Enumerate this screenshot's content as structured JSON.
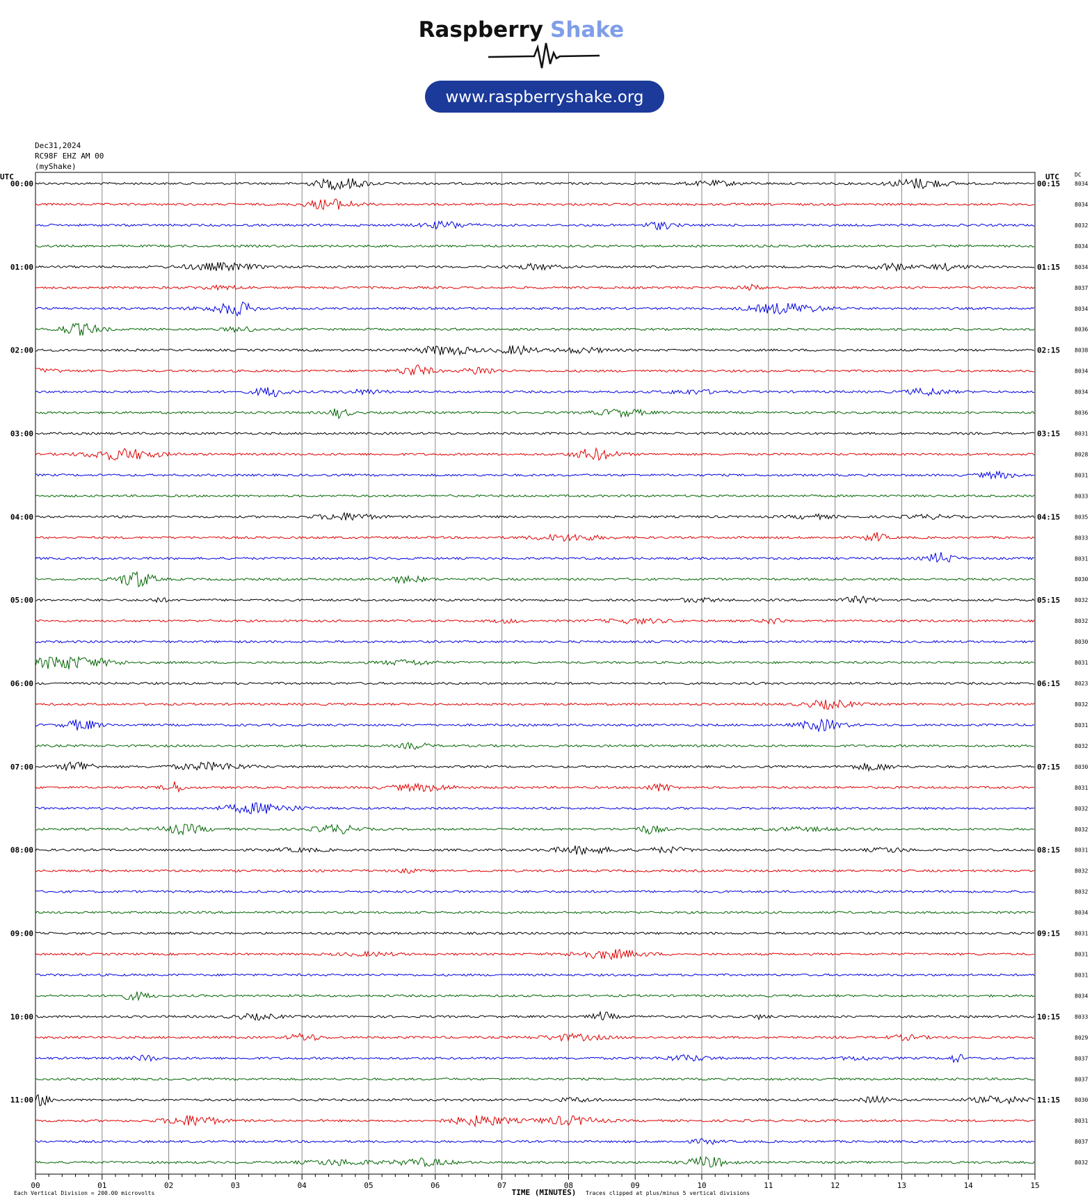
{
  "header": {
    "brand_1": "Raspberry",
    "brand_2": "Shake",
    "url": "www.raspberryshake.org"
  },
  "plot": {
    "date": "Dec31,2024",
    "station": "RC98F EHZ AM 00",
    "source": "(myShake)",
    "left_axis_label": "UTC",
    "right_axis_label": "UTC",
    "dc_label": "DC",
    "left_times": [
      "00:00",
      "01:00",
      "02:00",
      "03:00",
      "04:00",
      "05:00",
      "06:00",
      "07:00",
      "08:00",
      "09:00",
      "10:00",
      "11:00"
    ],
    "right_times": [
      "00:15",
      "01:15",
      "02:15",
      "03:15",
      "04:15",
      "05:15",
      "06:15",
      "07:15",
      "08:15",
      "09:15",
      "10:15",
      "11:15"
    ],
    "dc_values": [
      "8034",
      "8034",
      "8032",
      "8034",
      "8034",
      "8037",
      "8034",
      "8036",
      "8038",
      "8034",
      "8034",
      "8036",
      "8031",
      "8028",
      "8031",
      "8033",
      "8035",
      "8033",
      "8031",
      "8030",
      "8032",
      "8032",
      "8030",
      "8031",
      "8023",
      "8032",
      "8031",
      "8032",
      "8030",
      "8031",
      "8032",
      "8032",
      "8031",
      "8032",
      "8032",
      "8034",
      "8031",
      "8031",
      "8031",
      "8034",
      "8033",
      "8029",
      "8037",
      "8037",
      "8030",
      "8031",
      "8037",
      "8032"
    ],
    "x_ticks": [
      "00",
      "01",
      "02",
      "03",
      "04",
      "05",
      "06",
      "07",
      "08",
      "09",
      "10",
      "11",
      "12",
      "13",
      "14",
      "15"
    ],
    "x_label": "TIME (MINUTES)",
    "scale_note": "Each Vertical Division =  200.00 microvolts",
    "clip_note": "Traces clipped at plus/minus 5 vertical divisions",
    "trace_colors": [
      "#000000",
      "#e00000",
      "#0000e0",
      "#006400"
    ]
  }
}
